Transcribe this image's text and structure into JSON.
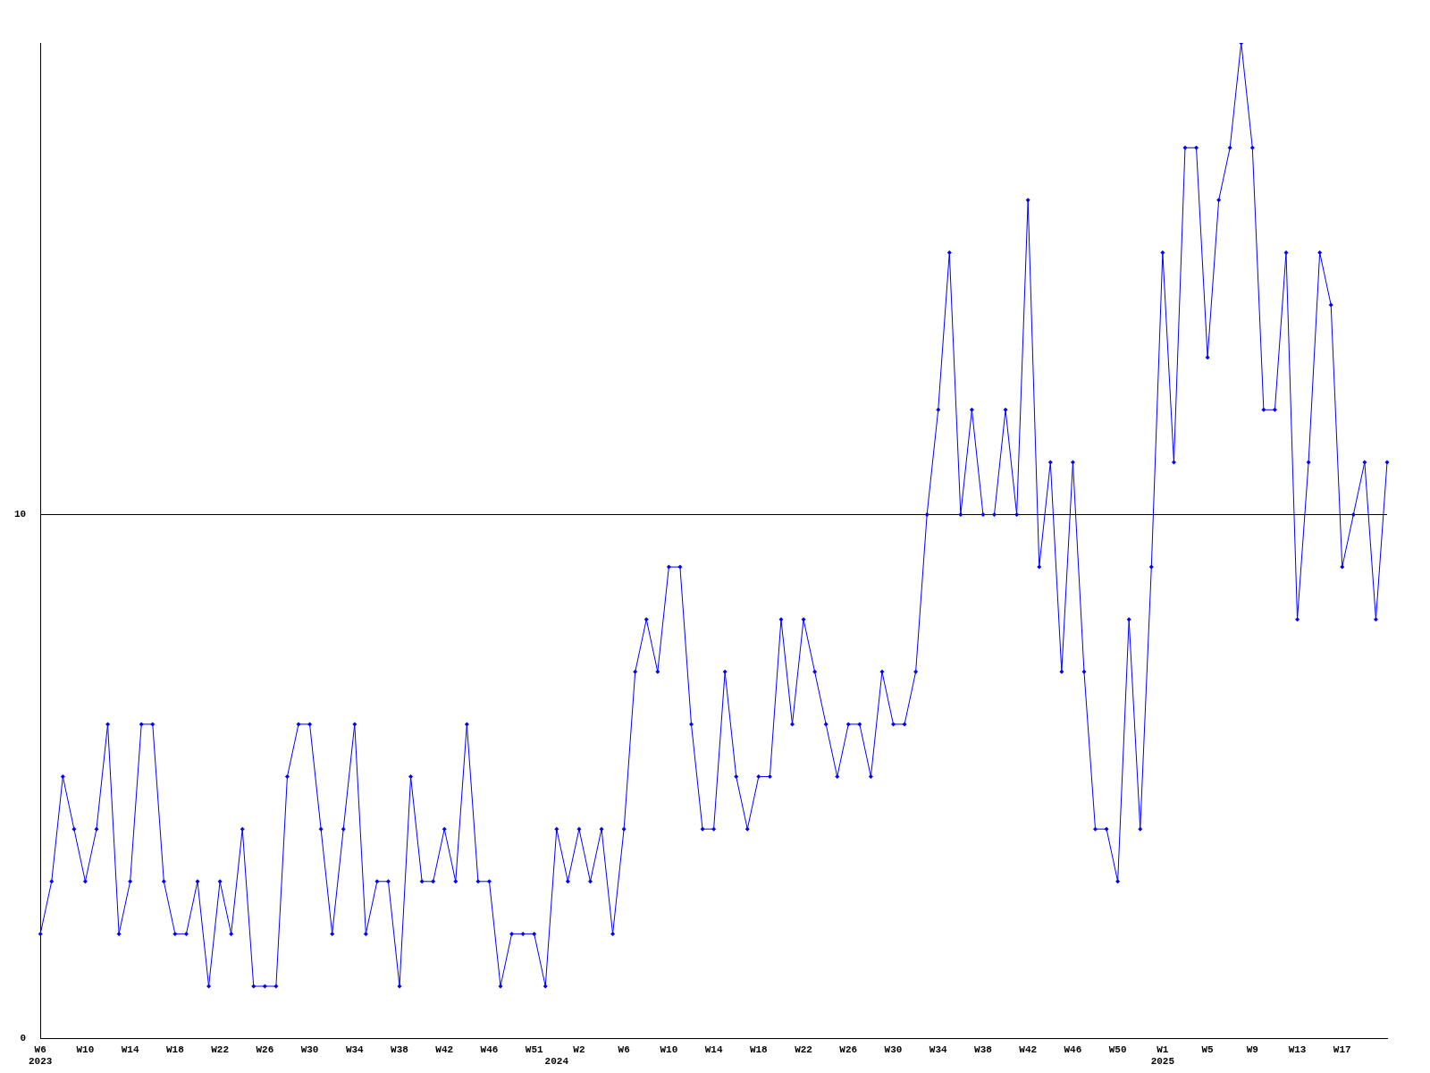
{
  "chart_data": {
    "type": "line",
    "categories": [
      "W6\n2023",
      null,
      null,
      null,
      "W10",
      null,
      null,
      null,
      "W14",
      null,
      null,
      null,
      "W18",
      null,
      null,
      null,
      "W22",
      null,
      null,
      null,
      "W26",
      null,
      null,
      null,
      "W30",
      null,
      null,
      null,
      "W34",
      null,
      null,
      null,
      "W38",
      null,
      null,
      null,
      "W42",
      null,
      null,
      null,
      "W46",
      null,
      null,
      null,
      "W51",
      null,
      "\n2024",
      null,
      "W2",
      null,
      null,
      null,
      "W6",
      null,
      null,
      null,
      "W10",
      null,
      null,
      null,
      "W14",
      null,
      null,
      null,
      "W18",
      null,
      null,
      null,
      "W22",
      null,
      null,
      null,
      "W26",
      null,
      null,
      null,
      "W30",
      null,
      null,
      null,
      "W34",
      null,
      null,
      null,
      "W38",
      null,
      null,
      null,
      "W42",
      null,
      null,
      null,
      "W46",
      null,
      null,
      null,
      "W50",
      null,
      null,
      null,
      "W1\n2025",
      null,
      null,
      null,
      "W5",
      null,
      null,
      null,
      "W9",
      null,
      null,
      null,
      "W13",
      null,
      null,
      null,
      "W17",
      null,
      null,
      null,
      null
    ],
    "values": [
      2,
      3,
      5,
      4,
      3,
      4,
      6,
      2,
      3,
      6,
      6,
      3,
      2,
      2,
      3,
      1,
      3,
      2,
      4,
      1,
      1,
      1,
      5,
      6,
      6,
      4,
      2,
      4,
      6,
      2,
      3,
      3,
      1,
      5,
      3,
      3,
      4,
      3,
      6,
      3,
      3,
      1,
      2,
      2,
      2,
      1,
      4,
      3,
      4,
      3,
      4,
      2,
      4,
      7,
      8,
      7,
      9,
      9,
      6,
      4,
      4,
      7,
      5,
      4,
      5,
      5,
      8,
      6,
      8,
      7,
      6,
      5,
      6,
      6,
      5,
      7,
      6,
      6,
      7,
      10,
      12,
      15,
      10,
      12,
      10,
      10,
      12,
      10,
      16,
      9,
      11,
      7,
      11,
      7,
      4,
      4,
      3,
      8,
      4,
      9,
      15,
      11,
      17,
      17,
      13,
      16,
      17,
      19,
      17,
      12,
      12,
      15,
      8,
      11,
      15,
      14,
      9,
      10,
      11,
      8,
      11
    ],
    "color": "#0000ff",
    "marker": "diamond",
    "line_style": "solid",
    "ylim": [
      0,
      19
    ],
    "yticks": [
      0,
      10
    ],
    "grid": "y"
  }
}
